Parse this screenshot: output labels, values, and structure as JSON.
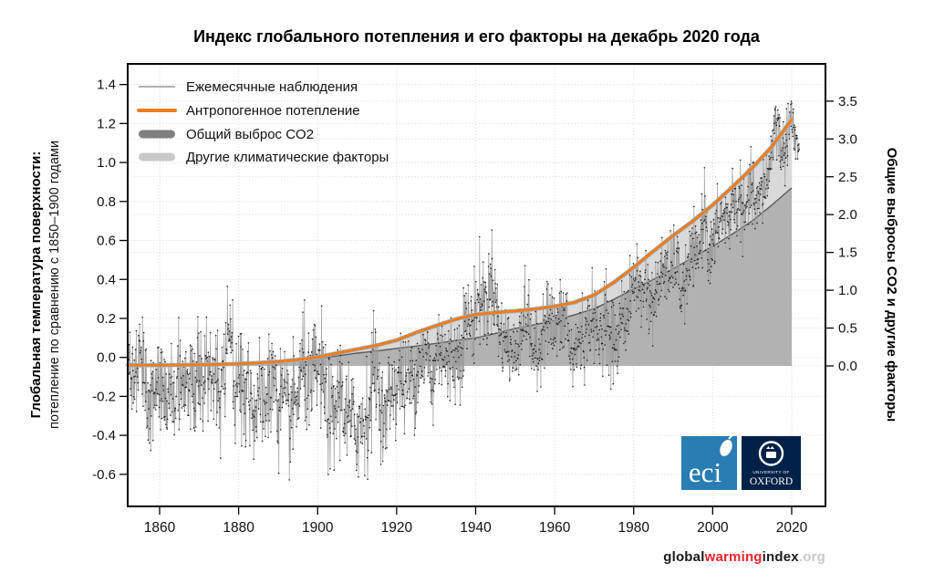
{
  "title": "Индекс глобального потепления и его факторы на декабрь 2020 года",
  "footer": {
    "part1": "global",
    "part2": "warming",
    "part3": "index",
    "part4": ".org"
  },
  "axes": {
    "left": {
      "title_bold": "Глобальная температура поверхности:",
      "title_regular": "потепление по сравнению с 1850–1900 годами",
      "ticks": [
        1.4,
        1.2,
        1.0,
        0.8,
        0.6,
        0.4,
        0.2,
        0.0,
        -0.2,
        -0.4,
        -0.6
      ]
    },
    "right": {
      "title": "Общие выбросы CO2 и другие факторы",
      "ticks": [
        3.5,
        3.0,
        2.5,
        2.0,
        1.5,
        1.0,
        0.5,
        0.0
      ]
    },
    "x": {
      "ticks": [
        1860,
        1880,
        1900,
        1920,
        1940,
        1960,
        1980,
        2000,
        2020
      ]
    }
  },
  "legend": [
    {
      "label": "Ежемесячные наблюдения",
      "swatch": "thin-line",
      "color": "#808080"
    },
    {
      "label": "Антропогенное потепление",
      "swatch": "thick-line",
      "color": "#f07d1c"
    },
    {
      "label": "Общий выброс CO2",
      "swatch": "bar",
      "color": "#7f7f7f"
    },
    {
      "label": "Другие климатические факторы",
      "swatch": "bar",
      "color": "#c9c9c9"
    }
  ],
  "logos": {
    "eci_text": "eci",
    "oxford_line1": "UNIVERSITY OF",
    "oxford_line2": "OXFORD"
  },
  "colors": {
    "anthropogenic": "#f07d1c",
    "anthropogenic_under": "#8fb8dc",
    "co2_area": "#b2b2b2",
    "co2_line": "#5a5a5a",
    "other_area": "#d9d9d9",
    "monthly_line": "#9b9b9b",
    "monthly_dot": "#1c1c1c",
    "grid": "#d6d6d6",
    "border": "#000000",
    "eci_blue": "#2a7db2",
    "oxford_navy": "#002147",
    "footer_red": "#e8262d",
    "footer_gray": "#c9c9c9"
  },
  "chart_data": {
    "type": "line",
    "title": "Индекс глобального потепления и его факторы на декабрь 2020 года",
    "x_axis_years": [
      1860,
      1880,
      1900,
      1920,
      1940,
      1960,
      1980,
      2000,
      2020
    ],
    "left_ylim": [
      -0.77,
      1.51
    ],
    "right_ylim": [
      -0.1,
      4.0
    ],
    "grid": "dotted",
    "legend_position": "top-left",
    "fill_end_year": 2020,
    "fill_baseline_right_axis": 0.0,
    "series": [
      {
        "name": "Ежемесячные наблюдения",
        "type": "line+markers",
        "annual_start_year": 1850,
        "annual_means": [
          -0.05,
          -0.02,
          -0.02,
          -0.08,
          -0.05,
          -0.08,
          -0.12,
          -0.22,
          -0.18,
          -0.08,
          -0.12,
          -0.18,
          -0.32,
          -0.12,
          -0.28,
          -0.12,
          -0.08,
          -0.12,
          -0.05,
          -0.12,
          -0.08,
          -0.18,
          -0.08,
          -0.12,
          -0.18,
          -0.22,
          -0.18,
          0.08,
          0.14,
          -0.12,
          -0.12,
          -0.08,
          -0.1,
          -0.18,
          -0.28,
          -0.25,
          -0.2,
          -0.25,
          -0.15,
          -0.05,
          -0.28,
          -0.2,
          -0.3,
          -0.3,
          -0.25,
          -0.2,
          -0.05,
          -0.08,
          -0.2,
          -0.1,
          -0.05,
          -0.1,
          -0.2,
          -0.3,
          -0.35,
          -0.2,
          -0.15,
          -0.3,
          -0.32,
          -0.35,
          -0.35,
          -0.35,
          -0.3,
          -0.28,
          -0.08,
          -0.05,
          -0.25,
          -0.35,
          -0.2,
          -0.15,
          -0.15,
          -0.08,
          -0.18,
          -0.12,
          -0.12,
          -0.08,
          0.02,
          -0.02,
          0.02,
          -0.18,
          0.02,
          0.08,
          0.02,
          -0.08,
          0.04,
          -0.02,
          0.04,
          0.14,
          0.2,
          0.16,
          0.25,
          0.32,
          0.28,
          0.28,
          0.42,
          0.32,
          0.12,
          0.1,
          0.08,
          0.02,
          -0.02,
          0.14,
          0.18,
          0.24,
          0.08,
          0.02,
          -0.02,
          0.18,
          0.24,
          0.18,
          0.14,
          0.18,
          0.18,
          0.24,
          -0.02,
          0.02,
          0.08,
          0.12,
          0.08,
          0.22,
          0.18,
          0.08,
          0.14,
          0.28,
          0.04,
          0.12,
          0.02,
          0.28,
          0.18,
          0.28,
          0.38,
          0.42,
          0.28,
          0.42,
          0.28,
          0.28,
          0.32,
          0.44,
          0.48,
          0.38,
          0.52,
          0.48,
          0.32,
          0.38,
          0.44,
          0.56,
          0.48,
          0.62,
          0.78,
          0.52,
          0.54,
          0.66,
          0.72,
          0.72,
          0.68,
          0.82,
          0.76,
          0.82,
          0.68,
          0.82,
          0.88,
          0.74,
          0.82,
          0.88,
          0.92,
          1.08,
          1.24,
          1.12,
          1.02,
          1.18,
          1.24,
          1.08
        ],
        "jitter_profile": [
          {
            "from": 1850,
            "sd": 0.135
          },
          {
            "from": 1880,
            "sd": 0.14
          },
          {
            "from": 1915,
            "sd": 0.115
          },
          {
            "from": 1945,
            "sd": 0.1
          },
          {
            "from": 1975,
            "sd": 0.09
          },
          {
            "from": 2000,
            "sd": 0.085
          }
        ],
        "seed": 31
      },
      {
        "name": "Антропогенное потепление",
        "type": "line",
        "years": [
          1850,
          1855,
          1860,
          1865,
          1870,
          1875,
          1880,
          1885,
          1890,
          1895,
          1900,
          1905,
          1910,
          1915,
          1920,
          1925,
          1930,
          1935,
          1940,
          1945,
          1950,
          1955,
          1960,
          1965,
          1970,
          1975,
          1980,
          1985,
          1990,
          1995,
          2000,
          2005,
          2010,
          2015,
          2020
        ],
        "values": [
          -0.04,
          -0.04,
          -0.04,
          -0.039,
          -0.038,
          -0.036,
          -0.033,
          -0.028,
          -0.022,
          -0.012,
          0.002,
          0.022,
          0.042,
          0.062,
          0.088,
          0.128,
          0.163,
          0.196,
          0.22,
          0.23,
          0.238,
          0.248,
          0.262,
          0.282,
          0.32,
          0.385,
          0.462,
          0.545,
          0.625,
          0.7,
          0.782,
          0.875,
          0.972,
          1.082,
          1.22
        ]
      },
      {
        "name": "Общий выброс CO2",
        "type": "area",
        "years": [
          1850,
          1855,
          1860,
          1865,
          1870,
          1875,
          1880,
          1885,
          1890,
          1895,
          1900,
          1905,
          1910,
          1915,
          1920,
          1925,
          1930,
          1935,
          1940,
          1945,
          1950,
          1955,
          1960,
          1965,
          1970,
          1975,
          1980,
          1985,
          1990,
          1995,
          2000,
          2005,
          2010,
          2015,
          2020
        ],
        "values": [
          -0.042,
          -0.042,
          -0.042,
          -0.0415,
          -0.041,
          -0.04,
          -0.038,
          -0.034,
          -0.028,
          -0.018,
          -0.006,
          0.008,
          0.022,
          0.033,
          0.046,
          0.058,
          0.072,
          0.086,
          0.1,
          0.123,
          0.148,
          0.168,
          0.19,
          0.218,
          0.25,
          0.298,
          0.35,
          0.4,
          0.455,
          0.512,
          0.57,
          0.633,
          0.7,
          0.782,
          0.87
        ]
      },
      {
        "name": "Другие климатические факторы",
        "type": "area-band",
        "band_between": [
          "Общий выброс CO2",
          "Антропогенное потепление"
        ]
      }
    ]
  }
}
